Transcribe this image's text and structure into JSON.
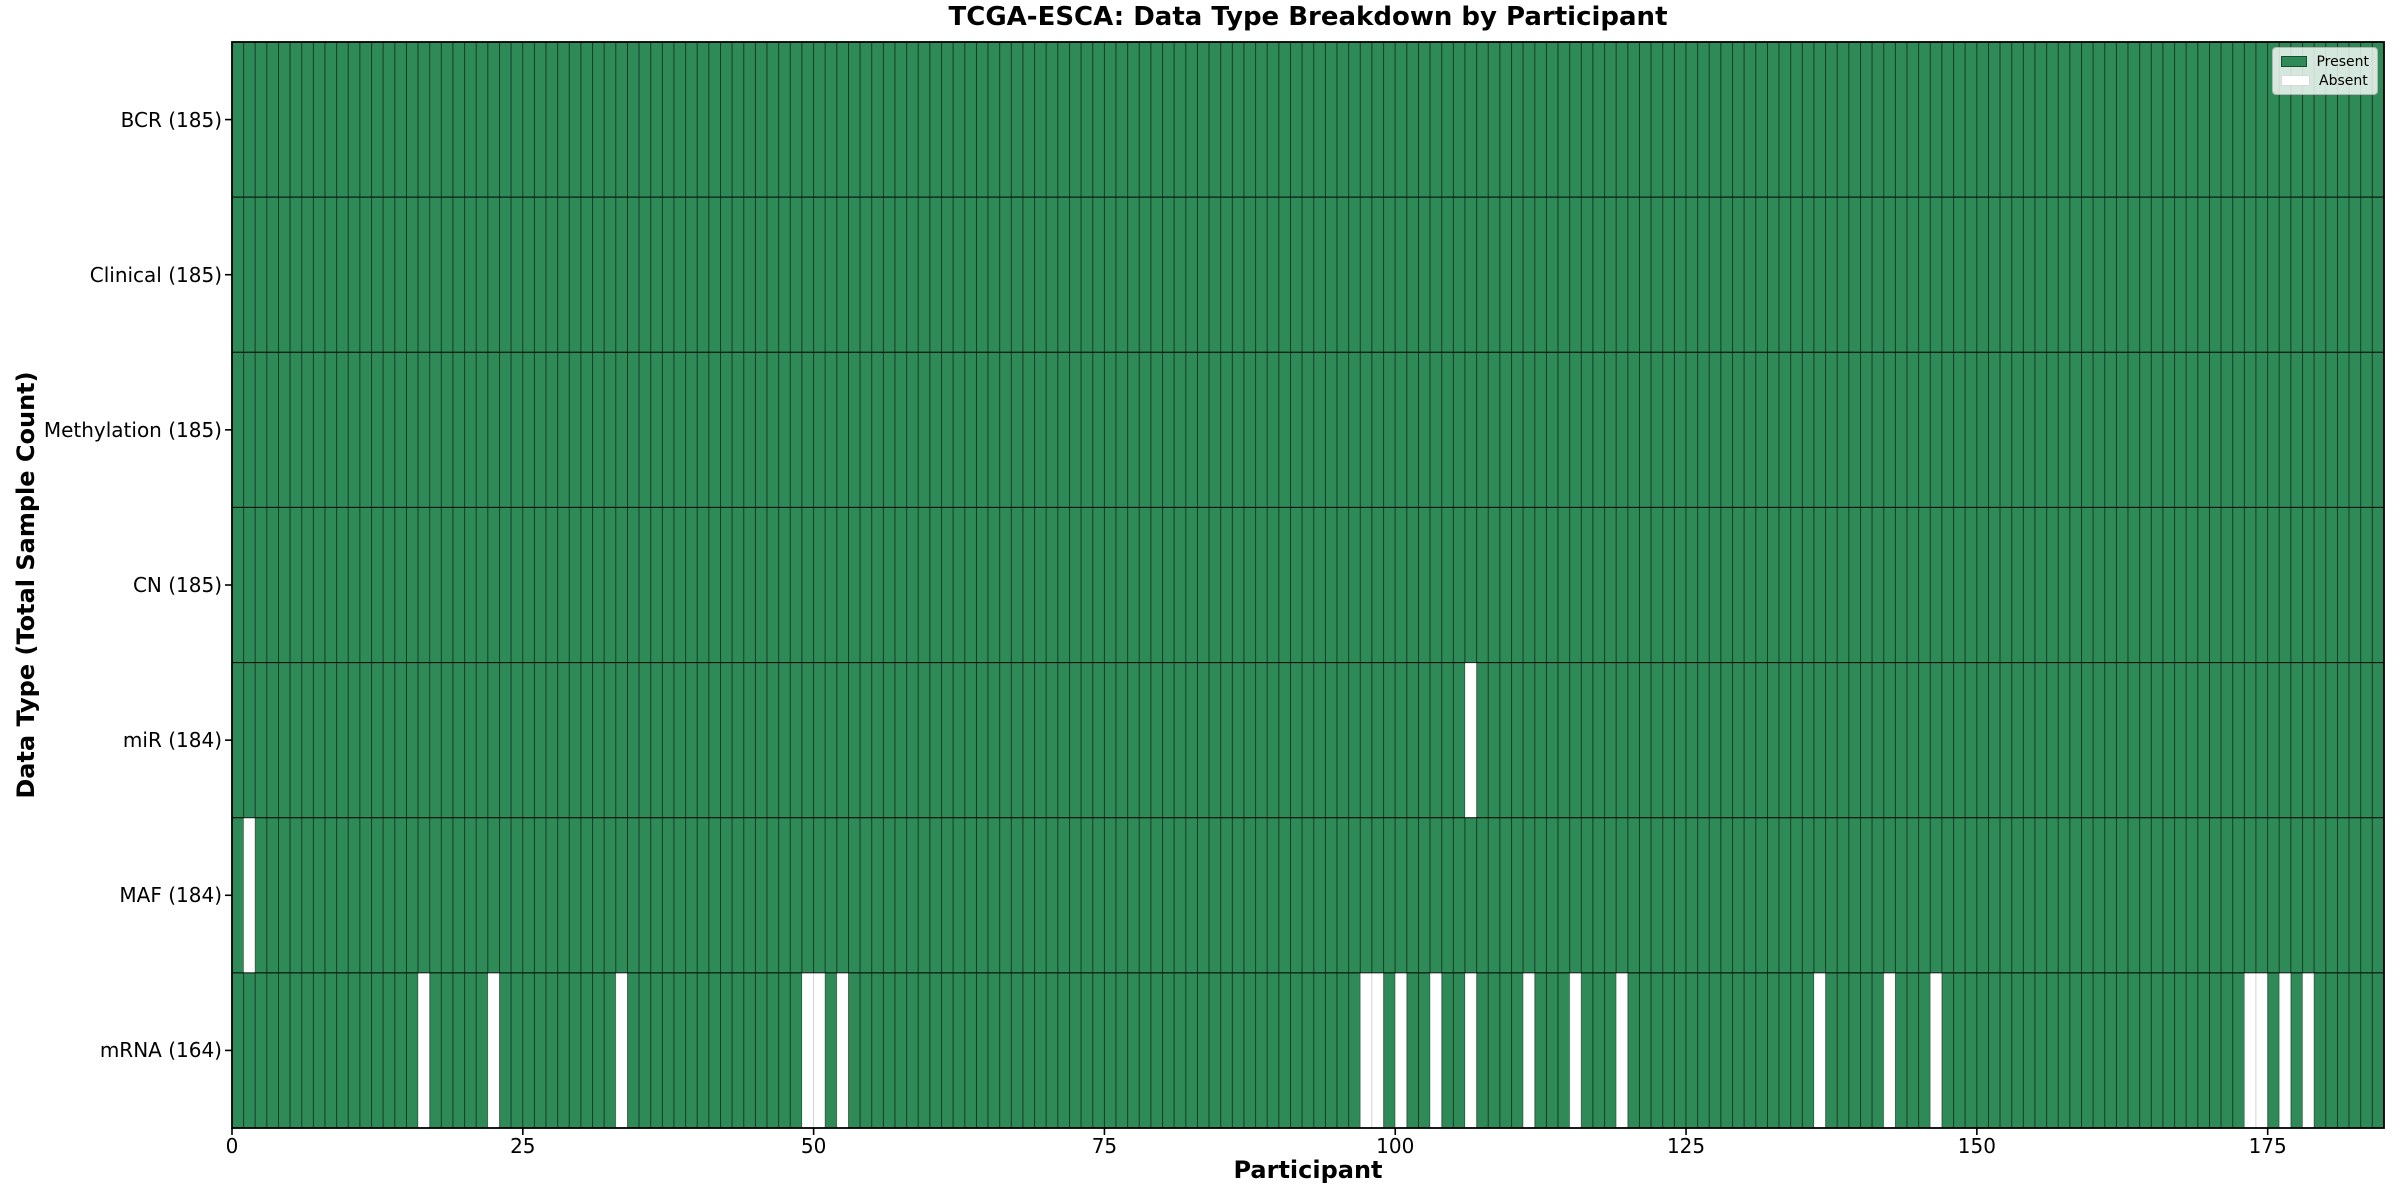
{
  "chart_data": {
    "type": "heatmap",
    "title": "TCGA-ESCA: Data Type Breakdown by Participant",
    "xlabel": "Participant",
    "ylabel": "Data Type (Total Sample Count)",
    "n_participants": 185,
    "xlim": [
      0,
      185
    ],
    "x_ticks": [
      0,
      25,
      50,
      75,
      100,
      125,
      150,
      175
    ],
    "grid": false,
    "legend": {
      "position": "upper right",
      "entries": [
        {
          "label": "Present",
          "color": "#2e8b57"
        },
        {
          "label": "Absent",
          "color": "#ffffff"
        }
      ]
    },
    "colors": {
      "present": "#2e8b57",
      "absent": "#ffffff",
      "cell_border": "rgba(0,0,0,0.45)",
      "absent_cell_border": "rgba(0,0,0,0.12)",
      "frame": "#000000"
    },
    "rows": [
      {
        "label": "BCR (185)",
        "total": 185,
        "absent_participants": []
      },
      {
        "label": "Clinical (185)",
        "total": 185,
        "absent_participants": []
      },
      {
        "label": "Methylation (185)",
        "total": 185,
        "absent_participants": []
      },
      {
        "label": "CN (185)",
        "total": 185,
        "absent_participants": []
      },
      {
        "label": "miR (184)",
        "total": 184,
        "absent_participants": [
          106
        ]
      },
      {
        "label": "MAF (184)",
        "total": 184,
        "absent_participants": [
          1
        ]
      },
      {
        "label": "mRNA (164)",
        "total": 164,
        "absent_participants": [
          16,
          22,
          33,
          49,
          50,
          52,
          97,
          98,
          100,
          103,
          106,
          111,
          115,
          119,
          136,
          142,
          146,
          173,
          174,
          176,
          178
        ]
      }
    ]
  }
}
